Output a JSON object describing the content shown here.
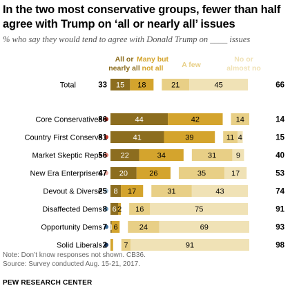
{
  "title": "In the two most conservative groups, fewer than half agree with Trump on ‘all or nearly all’ issues",
  "subtitle": "% who say they would tend to agree with Donald Trump on ____ issues",
  "footer": {
    "note": "Note: Don’t know responses not shown. CB36.",
    "source": "Source: Survey conducted Aug. 15-21, 2017.",
    "org": "PEW RESEARCH CENTER"
  },
  "chart_data": {
    "type": "bar",
    "stacked": "diverging",
    "series": [
      {
        "name": "All or nearly all",
        "color": "#8c6d1f"
      },
      {
        "name": "Many but not all",
        "color": "#d4a42d"
      },
      {
        "name": "A few",
        "color": "#e8cf86"
      },
      {
        "name": "No or almost no",
        "color": "#f0e2b6"
      }
    ],
    "categories": [
      "Total",
      "Core Conservatives",
      "Country First Conservs",
      "Market Skeptic Reps",
      "New Era Enterprisers",
      "Devout & Diverse",
      "Disaffected Dems",
      "Opportunity Dems",
      "Solid Liberals"
    ],
    "dot_colors": [
      "",
      "#9c2a1e",
      "#c0392b",
      "#e57f72",
      "#f1b0a8",
      "#a9c7dc",
      "#6f9ec2",
      "#3e6f9e",
      "#1f3f6a"
    ],
    "values": [
      [
        15,
        18,
        21,
        45
      ],
      [
        44,
        42,
        14,
        0
      ],
      [
        41,
        39,
        11,
        4
      ],
      [
        22,
        34,
        31,
        9
      ],
      [
        20,
        26,
        35,
        17
      ],
      [
        8,
        17,
        31,
        43
      ],
      [
        6,
        2,
        16,
        75
      ],
      [
        1,
        6,
        24,
        69
      ],
      [
        0,
        2,
        7,
        91
      ]
    ],
    "labels": [
      [
        "15",
        "18",
        "21",
        "45"
      ],
      [
        "44",
        "42",
        "14",
        ""
      ],
      [
        "41",
        "39",
        "11",
        "4"
      ],
      [
        "22",
        "34",
        "31",
        "9"
      ],
      [
        "20",
        "26",
        "35",
        "17"
      ],
      [
        "8",
        "17",
        "31",
        "43"
      ],
      [
        "6",
        "2",
        "16",
        "75"
      ],
      [
        "1",
        "6",
        "24",
        "69"
      ],
      [
        "",
        "",
        "7",
        "91"
      ]
    ],
    "net_agree": [
      33,
      86,
      81,
      56,
      47,
      25,
      8,
      7,
      2
    ],
    "net_disagree": [
      66,
      14,
      15,
      40,
      53,
      74,
      91,
      93,
      98
    ]
  }
}
